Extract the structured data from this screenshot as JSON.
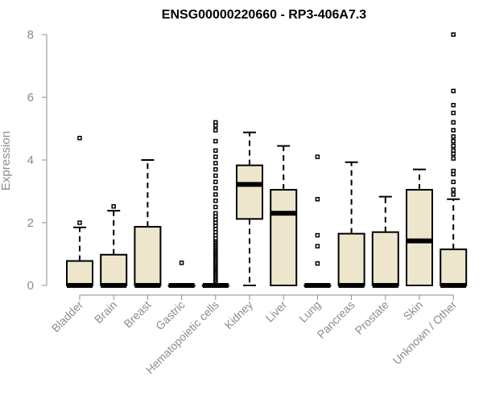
{
  "chart_data": {
    "type": "box",
    "title": "ENSG00000220660 - RP3-406A7.3",
    "xlabel": "",
    "ylabel": "Expression",
    "ylim": [
      0,
      8
    ],
    "yticks": [
      0,
      2,
      4,
      6,
      8
    ],
    "grid": false,
    "box_color": "#ede6cd",
    "axis_color": "#8c8c8c",
    "categories": [
      "Bladder",
      "Brain",
      "Breast",
      "Gastric",
      "Hematopoietic cells",
      "Kidney",
      "Liver",
      "Lung",
      "Pancreas",
      "Prostate",
      "Skin",
      "Unknown / Other"
    ],
    "boxes": [
      {
        "name": "Bladder",
        "whislo": 0,
        "q1": 0,
        "med": 0,
        "q3": 0.78,
        "whishi": 1.85,
        "fliers": [
          2.0,
          4.7
        ]
      },
      {
        "name": "Brain",
        "whislo": 0,
        "q1": 0,
        "med": 0,
        "q3": 0.98,
        "whishi": 2.38,
        "fliers": [
          2.52
        ]
      },
      {
        "name": "Breast",
        "whislo": 0,
        "q1": 0,
        "med": 0,
        "q3": 1.87,
        "whishi": 4.0,
        "fliers": []
      },
      {
        "name": "Gastric",
        "whislo": 0,
        "q1": 0,
        "med": 0,
        "q3": 0,
        "whishi": 0,
        "fliers": [
          0.72
        ]
      },
      {
        "name": "Hematopoietic cells",
        "whislo": 0,
        "q1": 0,
        "med": 0,
        "q3": 0,
        "whishi": 0,
        "fliers": [
          0.1,
          0.15,
          0.2,
          0.25,
          0.3,
          0.35,
          0.4,
          0.45,
          0.5,
          0.55,
          0.6,
          0.65,
          0.7,
          0.75,
          0.8,
          0.85,
          0.9,
          0.95,
          1.0,
          1.05,
          1.1,
          1.15,
          1.2,
          1.25,
          1.3,
          1.35,
          1.4,
          1.5,
          1.6,
          1.7,
          1.8,
          1.9,
          2.0,
          2.1,
          2.2,
          2.3,
          2.5,
          2.7,
          2.9,
          3.1,
          3.3,
          3.5,
          3.7,
          3.9,
          4.1,
          4.3,
          4.6,
          4.95,
          5.1,
          5.2
        ]
      },
      {
        "name": "Kidney",
        "whislo": 0,
        "q1": 2.12,
        "med": 3.22,
        "q3": 3.83,
        "whishi": 4.88,
        "fliers": []
      },
      {
        "name": "Liver",
        "whislo": 0,
        "q1": 0,
        "med": 2.3,
        "q3": 3.05,
        "whishi": 4.45,
        "fliers": []
      },
      {
        "name": "Lung",
        "whislo": 0,
        "q1": 0,
        "med": 0,
        "q3": 0,
        "whishi": 0,
        "fliers": [
          0.7,
          1.25,
          1.6,
          2.75,
          4.1
        ]
      },
      {
        "name": "Pancreas",
        "whislo": 0,
        "q1": 0,
        "med": 0,
        "q3": 1.65,
        "whishi": 3.93,
        "fliers": []
      },
      {
        "name": "Prostate",
        "whislo": 0,
        "q1": 0,
        "med": 0,
        "q3": 1.7,
        "whishi": 2.83,
        "fliers": []
      },
      {
        "name": "Skin",
        "whislo": 0,
        "q1": 0,
        "med": 1.42,
        "q3": 3.05,
        "whishi": 3.7,
        "fliers": []
      },
      {
        "name": "Unknown / Other",
        "whislo": 0,
        "q1": 0,
        "med": 0,
        "q3": 1.15,
        "whishi": 2.75,
        "fliers": [
          2.9,
          3.05,
          3.3,
          3.55,
          3.65,
          4.05,
          4.2,
          4.3,
          4.45,
          4.6,
          4.75,
          4.95,
          5.2,
          5.5,
          5.75,
          6.2,
          8.0
        ]
      }
    ]
  }
}
